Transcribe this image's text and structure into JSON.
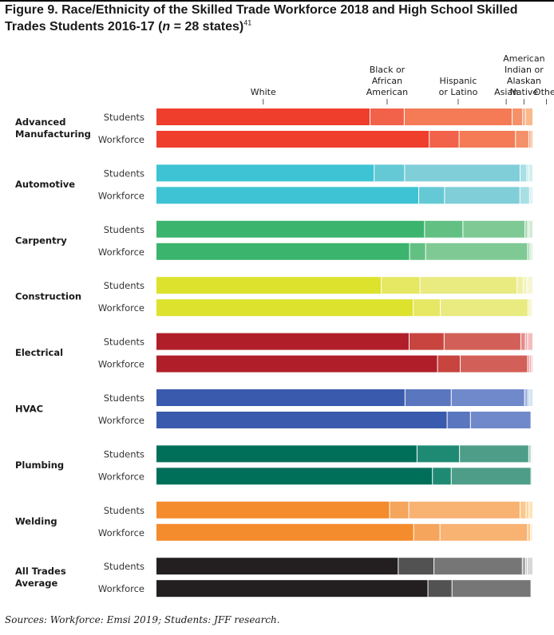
{
  "figure": {
    "title_prefix": "Figure 9. Race/Ethnicity of the Skilled Trade Workforce 2018 and High School Skilled Trades Students 2016-17 (",
    "title_n": "n",
    "title_suffix": " = 28 states)",
    "title_note": "41",
    "source": "Sources: Workforce: Emsi 2019; Students: JFF research."
  },
  "chart_data": {
    "type": "bar",
    "orientation": "horizontal",
    "stacked": true,
    "xlim": [
      0,
      100
    ],
    "value_unit": "percent",
    "grid": false,
    "legend_placement": "top",
    "segments": [
      {
        "key": "white",
        "label_lines": [
          "White"
        ]
      },
      {
        "key": "black",
        "label_lines": [
          "Black or",
          "African",
          "American"
        ]
      },
      {
        "key": "hispanic",
        "label_lines": [
          "Hispanic",
          "or Latino"
        ]
      },
      {
        "key": "asian",
        "label_lines": [
          "Asian"
        ]
      },
      {
        "key": "native",
        "label_lines": [
          "American",
          "Indian or",
          "Alaskan",
          "Native"
        ]
      },
      {
        "key": "other",
        "label_lines": [
          "Other"
        ]
      }
    ],
    "row_labels": [
      "Students",
      "Workforce"
    ],
    "categories": [
      {
        "name_lines": [
          "Advanced",
          "Manufacturing"
        ],
        "colors": [
          "#ef3e2c",
          "#f2624a",
          "#f47b56",
          "#f4916a",
          "#f7a580",
          "#f9b98c"
        ],
        "students": [
          56.8,
          9.1,
          28.7,
          2.8,
          0.7,
          1.9
        ],
        "workforce": [
          74.0,
          8.1,
          15.3,
          3.6,
          0.6,
          0.4
        ]
      },
      {
        "name_lines": [
          "Automotive"
        ],
        "colors": [
          "#3dc3d3",
          "#64c9d5",
          "#80ced8",
          "#a8dfe5",
          "#c0e6ea",
          "#d4eeef"
        ],
        "students": [
          57.9,
          8.1,
          30.7,
          1.8,
          0.5,
          1.0
        ],
        "workforce": [
          71.0,
          7.0,
          20.4,
          2.6,
          0.4,
          0.4
        ]
      },
      {
        "name_lines": [
          "Carpentry"
        ],
        "colors": [
          "#3bb46d",
          "#62c083",
          "#7fca94",
          "#a5d9b1",
          "#bfe3c6",
          "#d0ead5"
        ],
        "students": [
          71.3,
          10.2,
          16.5,
          0.7,
          0.4,
          0.9
        ],
        "workforce": [
          68.0,
          4.3,
          27.4,
          0.6,
          0.4,
          0.3
        ]
      },
      {
        "name_lines": [
          "Construction"
        ],
        "colors": [
          "#dde22c",
          "#e6e762",
          "#e9ea80",
          "#f0f0a8",
          "#f3f3bc",
          "#f7f6d4"
        ],
        "students": [
          59.8,
          10.3,
          25.8,
          1.7,
          0.9,
          1.5
        ],
        "workforce": [
          68.3,
          7.2,
          23.3,
          0.5,
          0.5,
          0.2
        ]
      },
      {
        "name_lines": [
          "Electrical"
        ],
        "colors": [
          "#b01f29",
          "#c7443f",
          "#d36058",
          "#e58a8a",
          "#efa7a7",
          "#f5bcbc"
        ],
        "students": [
          67.2,
          9.3,
          20.4,
          1.2,
          0.6,
          1.3
        ],
        "workforce": [
          75.5,
          6.1,
          18.1,
          0.5,
          0.5,
          0.3
        ]
      },
      {
        "name_lines": [
          "HVAC"
        ],
        "colors": [
          "#3a5aad",
          "#5a76bf",
          "#7089cb",
          "#a3b6e0",
          "#b6cde8",
          "#cfe3f1"
        ],
        "students": [
          66.1,
          12.3,
          19.5,
          0.9,
          0.5,
          0.7
        ],
        "workforce": [
          77.3,
          6.2,
          16.1,
          0.2,
          0.1,
          0.1
        ]
      },
      {
        "name_lines": [
          "Plumbing"
        ],
        "colors": [
          "#006f5a",
          "#1f8a74",
          "#4e9d88",
          "#a4cdc1",
          "#bfdbd1",
          "#d6e8e1"
        ],
        "students": [
          69.3,
          11.3,
          18.4,
          0.6,
          0.2,
          0.2
        ],
        "workforce": [
          73.4,
          5.0,
          21.2,
          0.3,
          0.1,
          0.0
        ]
      },
      {
        "name_lines": [
          "Welding"
        ],
        "colors": [
          "#f48b2d",
          "#f5a55c",
          "#f8b272",
          "#fbc98e",
          "#fcd79f",
          "#fde4b4"
        ],
        "students": [
          62.0,
          5.1,
          29.6,
          1.6,
          0.8,
          0.9
        ],
        "workforce": [
          68.4,
          7.0,
          23.3,
          0.8,
          0.3,
          0.2
        ]
      },
      {
        "name_lines": [
          "All Trades",
          "Average"
        ],
        "colors": [
          "#231f20",
          "#525252",
          "#767676",
          "#a9a9a9",
          "#bdbdbd",
          "#d8d8d8"
        ],
        "students": [
          64.3,
          9.5,
          23.5,
          0.9,
          0.4,
          1.4
        ],
        "workforce": [
          72.2,
          6.4,
          21.0,
          0.2,
          0.1,
          0.1
        ]
      }
    ]
  }
}
